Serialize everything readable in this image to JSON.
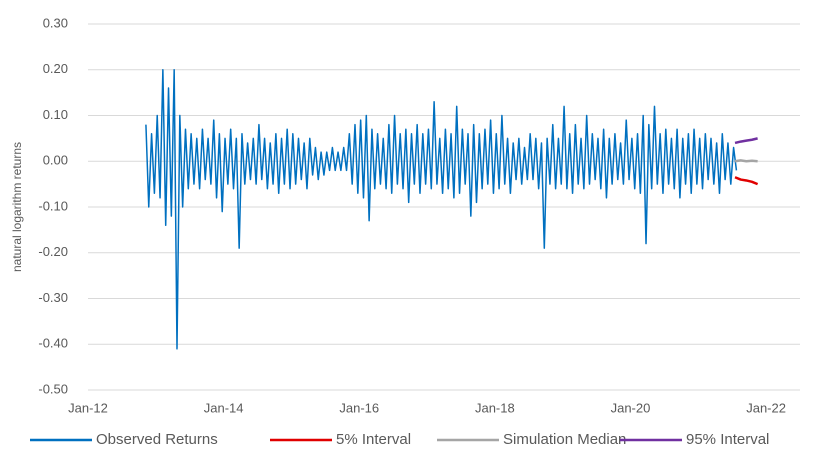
{
  "chart_data": {
    "type": "line",
    "y_label": "natural logarithm returns",
    "xlim": [
      "2012-01",
      "2022-07"
    ],
    "xticks": [
      {
        "value": "2012-01",
        "label": "Jan-12"
      },
      {
        "value": "2014-01",
        "label": "Jan-14"
      },
      {
        "value": "2016-01",
        "label": "Jan-16"
      },
      {
        "value": "2018-01",
        "label": "Jan-18"
      },
      {
        "value": "2020-01",
        "label": "Jan-20"
      },
      {
        "value": "2022-01",
        "label": "Jan-22"
      }
    ],
    "ylim": [
      -0.5,
      0.3
    ],
    "yticks": [
      {
        "value": 0.3,
        "label": "0.30"
      },
      {
        "value": 0.2,
        "label": "0.20"
      },
      {
        "value": 0.1,
        "label": "0.10"
      },
      {
        "value": 0,
        "label": "0.00"
      },
      {
        "value": -0.1,
        "label": "-0.10"
      },
      {
        "value": -0.2,
        "label": "-0.20"
      },
      {
        "value": -0.3,
        "label": "-0.30"
      },
      {
        "value": -0.4,
        "label": "-0.40"
      },
      {
        "value": -0.5,
        "label": "-0.50"
      }
    ],
    "grid": true,
    "legend": "bottom",
    "series": [
      {
        "name": "Observed Returns",
        "color": "#0070c0",
        "x": [
          "2012-11",
          "2012-11",
          "2012-12",
          "2012-12",
          "2013-01",
          "2013-01",
          "2013-02",
          "2013-02",
          "2013-03",
          "2013-03",
          "2013-04",
          "2013-04",
          "2013-05",
          "2013-05",
          "2013-06",
          "2013-06",
          "2013-07",
          "2013-07",
          "2013-08",
          "2013-08",
          "2013-09",
          "2013-09",
          "2013-10",
          "2013-10",
          "2013-11",
          "2013-11",
          "2013-12",
          "2013-12",
          "2014-01",
          "2014-01",
          "2014-02",
          "2014-02",
          "2014-03",
          "2014-03",
          "2014-04",
          "2014-04",
          "2014-05",
          "2014-05",
          "2014-06",
          "2014-06",
          "2014-07",
          "2014-07",
          "2014-08",
          "2014-08",
          "2014-09",
          "2014-09",
          "2014-10",
          "2014-10",
          "2014-11",
          "2014-11",
          "2014-12",
          "2014-12",
          "2015-01",
          "2015-01",
          "2015-02",
          "2015-02",
          "2015-03",
          "2015-03",
          "2015-04",
          "2015-04",
          "2015-05",
          "2015-05",
          "2015-06",
          "2015-06",
          "2015-07",
          "2015-07",
          "2015-08",
          "2015-08",
          "2015-09",
          "2015-09",
          "2015-10",
          "2015-10",
          "2015-11",
          "2015-11",
          "2015-12",
          "2015-12",
          "2016-01",
          "2016-01",
          "2016-02",
          "2016-02",
          "2016-03",
          "2016-03",
          "2016-04",
          "2016-04",
          "2016-05",
          "2016-05",
          "2016-06",
          "2016-06",
          "2016-07",
          "2016-07",
          "2016-08",
          "2016-08",
          "2016-09",
          "2016-09",
          "2016-10",
          "2016-10",
          "2016-11",
          "2016-11",
          "2016-12",
          "2016-12",
          "2017-01",
          "2017-01",
          "2017-02",
          "2017-02",
          "2017-03",
          "2017-03",
          "2017-04",
          "2017-04",
          "2017-05",
          "2017-05",
          "2017-06",
          "2017-06",
          "2017-07",
          "2017-07",
          "2017-08",
          "2017-08",
          "2017-09",
          "2017-09",
          "2017-10",
          "2017-10",
          "2017-11",
          "2017-11",
          "2017-12",
          "2017-12",
          "2018-01",
          "2018-01",
          "2018-02",
          "2018-02",
          "2018-03",
          "2018-03",
          "2018-04",
          "2018-04",
          "2018-05",
          "2018-05",
          "2018-06",
          "2018-06",
          "2018-07",
          "2018-07",
          "2018-08",
          "2018-08",
          "2018-09",
          "2018-09",
          "2018-10",
          "2018-10",
          "2018-11",
          "2018-11",
          "2018-12",
          "2018-12",
          "2019-01",
          "2019-01",
          "2019-02",
          "2019-02",
          "2019-03",
          "2019-03",
          "2019-04",
          "2019-04",
          "2019-05",
          "2019-05",
          "2019-06",
          "2019-06",
          "2019-07",
          "2019-07",
          "2019-08",
          "2019-08",
          "2019-09",
          "2019-09",
          "2019-10",
          "2019-10",
          "2019-11",
          "2019-11",
          "2019-12",
          "2019-12",
          "2020-01",
          "2020-01",
          "2020-02",
          "2020-02",
          "2020-03",
          "2020-03",
          "2020-04",
          "2020-04",
          "2020-05",
          "2020-05",
          "2020-06",
          "2020-06",
          "2020-07",
          "2020-07",
          "2020-08",
          "2020-08",
          "2020-09",
          "2020-09",
          "2020-10",
          "2020-10",
          "2020-11",
          "2020-11",
          "2020-12",
          "2020-12",
          "2021-01",
          "2021-01",
          "2021-02",
          "2021-02",
          "2021-03",
          "2021-03",
          "2021-04",
          "2021-04",
          "2021-05",
          "2021-05",
          "2021-06",
          "2021-06",
          "2021-07",
          "2021-07"
        ],
        "values": [
          0.08,
          -0.1,
          0.06,
          -0.07,
          0.1,
          -0.08,
          0.2,
          -0.14,
          0.16,
          -0.12,
          0.2,
          -0.41,
          0.1,
          -0.1,
          0.07,
          -0.06,
          0.06,
          -0.05,
          0.05,
          -0.06,
          0.07,
          -0.04,
          0.05,
          -0.05,
          0.09,
          -0.08,
          0.06,
          -0.11,
          0.05,
          -0.05,
          0.07,
          -0.06,
          0.05,
          -0.19,
          0.06,
          -0.05,
          0.04,
          -0.04,
          0.05,
          -0.05,
          0.08,
          -0.04,
          0.05,
          -0.06,
          0.04,
          -0.05,
          0.06,
          -0.07,
          0.05,
          -0.05,
          0.07,
          -0.06,
          0.06,
          -0.05,
          0.05,
          -0.04,
          0.04,
          -0.06,
          0.05,
          -0.03,
          0.03,
          -0.04,
          0.02,
          -0.03,
          0.02,
          -0.02,
          0.03,
          -0.02,
          0.02,
          -0.02,
          0.03,
          -0.02,
          0.06,
          -0.05,
          0.08,
          -0.07,
          0.09,
          -0.08,
          0.1,
          -0.13,
          0.07,
          -0.06,
          0.06,
          -0.05,
          0.05,
          -0.06,
          0.08,
          -0.07,
          0.1,
          -0.05,
          0.06,
          -0.06,
          0.07,
          -0.09,
          0.06,
          -0.05,
          0.08,
          -0.07,
          0.06,
          -0.05,
          0.07,
          -0.06,
          0.13,
          -0.05,
          0.05,
          -0.07,
          0.07,
          -0.06,
          0.06,
          -0.08,
          0.12,
          -0.07,
          0.07,
          -0.05,
          0.06,
          -0.12,
          0.08,
          -0.09,
          0.06,
          -0.06,
          0.07,
          -0.05,
          0.09,
          -0.07,
          0.06,
          -0.06,
          0.1,
          -0.05,
          0.05,
          -0.07,
          0.04,
          -0.04,
          0.05,
          -0.05,
          0.03,
          -0.04,
          0.06,
          -0.04,
          0.05,
          -0.06,
          0.04,
          -0.19,
          0.05,
          -0.05,
          0.08,
          -0.06,
          0.05,
          -0.05,
          0.12,
          -0.06,
          0.06,
          -0.07,
          0.08,
          -0.05,
          0.05,
          -0.06,
          0.1,
          -0.05,
          0.06,
          -0.04,
          0.05,
          -0.06,
          0.07,
          -0.08,
          0.05,
          -0.05,
          0.06,
          -0.04,
          0.04,
          -0.05,
          0.09,
          -0.04,
          0.05,
          -0.06,
          0.06,
          -0.07,
          0.1,
          -0.18,
          0.08,
          -0.06,
          0.12,
          -0.05,
          0.06,
          -0.07,
          0.07,
          -0.05,
          0.05,
          -0.06,
          0.07,
          -0.08,
          0.05,
          -0.05,
          0.06,
          -0.07,
          0.07,
          -0.05,
          0.05,
          -0.06,
          0.06,
          -0.04,
          0.05,
          -0.05,
          0.04,
          -0.07,
          0.06,
          -0.04,
          0.04,
          -0.05,
          0.03,
          -0.02
        ]
      },
      {
        "name": "5% Interval",
        "color": "#e00000",
        "x": [
          "2021-07",
          "2021-08",
          "2021-09",
          "2021-10",
          "2021-11"
        ],
        "values": [
          -0.035,
          -0.04,
          -0.042,
          -0.045,
          -0.05
        ]
      },
      {
        "name": "Simulation Median",
        "color": "#a5a5a5",
        "x": [
          "2021-07",
          "2021-08",
          "2021-09",
          "2021-10",
          "2021-11"
        ],
        "values": [
          0,
          0.002,
          0,
          0.001,
          0
        ]
      },
      {
        "name": "95% Interval",
        "color": "#7030a0",
        "x": [
          "2021-07",
          "2021-08",
          "2021-09",
          "2021-10",
          "2021-11"
        ],
        "values": [
          0.04,
          0.043,
          0.045,
          0.047,
          0.05
        ]
      }
    ]
  }
}
